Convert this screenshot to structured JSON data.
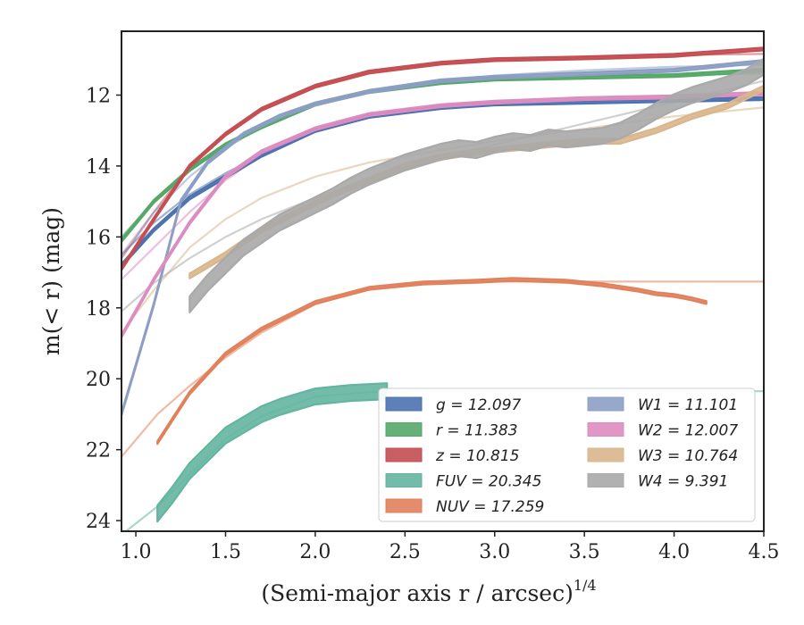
{
  "chart_data": {
    "type": "line",
    "xlabel": "(Semi-major axis r / arcsec)",
    "xlabel_exponent": "1/4",
    "ylabel": "m(< r) (mag)",
    "xlim": [
      0.92,
      4.5
    ],
    "ylim": [
      24.3,
      10.2
    ],
    "y_inverted": true,
    "x_ticks": [
      "1.0",
      "1.5",
      "2.0",
      "2.5",
      "3.0",
      "3.5",
      "4.0",
      "4.5"
    ],
    "y_ticks": [
      "12",
      "14",
      "16",
      "18",
      "20",
      "22",
      "24"
    ],
    "grid": false,
    "legend_position": "lower-right",
    "legend_columns": 2,
    "series": [
      {
        "name": "g = 12.097",
        "color": "#4c72b0",
        "band": 0.08,
        "data": [
          [
            0.92,
            16.8
          ],
          [
            1.1,
            15.8
          ],
          [
            1.3,
            14.9
          ],
          [
            1.5,
            14.3
          ],
          [
            1.7,
            13.7
          ],
          [
            2.0,
            13.0
          ],
          [
            2.3,
            12.6
          ],
          [
            2.7,
            12.35
          ],
          [
            3.0,
            12.25
          ],
          [
            3.5,
            12.2
          ],
          [
            4.0,
            12.15
          ],
          [
            4.5,
            12.1
          ]
        ],
        "model": [
          [
            0.92,
            16.5
          ],
          [
            1.1,
            15.6
          ],
          [
            1.3,
            14.8
          ],
          [
            1.5,
            14.2
          ],
          [
            1.7,
            13.7
          ],
          [
            2.0,
            13.0
          ],
          [
            2.3,
            12.6
          ],
          [
            2.7,
            12.35
          ],
          [
            3.0,
            12.25
          ],
          [
            3.5,
            12.17
          ],
          [
            4.0,
            12.12
          ],
          [
            4.5,
            12.1
          ]
        ]
      },
      {
        "name": "r = 11.383",
        "color": "#55a868",
        "band": 0.08,
        "data": [
          [
            0.92,
            16.1
          ],
          [
            1.1,
            15.0
          ],
          [
            1.3,
            14.1
          ],
          [
            1.5,
            13.4
          ],
          [
            1.7,
            12.9
          ],
          [
            2.0,
            12.25
          ],
          [
            2.3,
            11.9
          ],
          [
            2.7,
            11.65
          ],
          [
            3.0,
            11.55
          ],
          [
            3.5,
            11.5
          ],
          [
            4.0,
            11.45
          ],
          [
            4.5,
            11.3
          ]
        ],
        "model": [
          [
            0.92,
            16.0
          ],
          [
            1.1,
            15.0
          ],
          [
            1.3,
            14.1
          ],
          [
            1.5,
            13.4
          ],
          [
            1.7,
            12.9
          ],
          [
            2.0,
            12.3
          ],
          [
            2.3,
            11.9
          ],
          [
            2.7,
            11.65
          ],
          [
            3.0,
            11.55
          ],
          [
            3.5,
            11.48
          ],
          [
            4.0,
            11.43
          ],
          [
            4.5,
            11.4
          ]
        ]
      },
      {
        "name": "z = 10.815",
        "color": "#c44e52",
        "band": 0.08,
        "data": [
          [
            0.92,
            16.9
          ],
          [
            1.1,
            15.5
          ],
          [
            1.3,
            14.0
          ],
          [
            1.5,
            13.1
          ],
          [
            1.7,
            12.4
          ],
          [
            2.0,
            11.75
          ],
          [
            2.3,
            11.35
          ],
          [
            2.7,
            11.1
          ],
          [
            3.0,
            11.0
          ],
          [
            3.5,
            10.95
          ],
          [
            4.0,
            10.88
          ],
          [
            4.5,
            10.7
          ]
        ],
        "model": [
          [
            0.92,
            16.6
          ],
          [
            1.1,
            15.3
          ],
          [
            1.3,
            14.0
          ],
          [
            1.5,
            13.1
          ],
          [
            1.7,
            12.4
          ],
          [
            2.0,
            11.75
          ],
          [
            2.3,
            11.35
          ],
          [
            2.7,
            11.1
          ],
          [
            3.0,
            11.0
          ],
          [
            3.5,
            10.93
          ],
          [
            4.0,
            10.87
          ],
          [
            4.5,
            10.84
          ]
        ]
      },
      {
        "name": "FUV = 20.345",
        "color": "#64b5a0",
        "band": 0.45,
        "data": [
          [
            1.12,
            23.8
          ],
          [
            1.2,
            23.3
          ],
          [
            1.3,
            22.6
          ],
          [
            1.4,
            22.1
          ],
          [
            1.5,
            21.6
          ],
          [
            1.6,
            21.3
          ],
          [
            1.7,
            21.0
          ],
          [
            1.8,
            20.8
          ],
          [
            1.9,
            20.65
          ],
          [
            2.0,
            20.5
          ],
          [
            2.2,
            20.4
          ],
          [
            2.4,
            20.35
          ]
        ],
        "model": [
          [
            0.92,
            24.4
          ],
          [
            1.12,
            23.6
          ],
          [
            1.3,
            22.7
          ],
          [
            1.5,
            21.7
          ],
          [
            1.7,
            21.05
          ],
          [
            2.0,
            20.5
          ],
          [
            2.3,
            20.38
          ],
          [
            2.6,
            20.35
          ],
          [
            3.0,
            20.35
          ],
          [
            3.5,
            20.35
          ],
          [
            4.0,
            20.35
          ],
          [
            4.5,
            20.35
          ]
        ]
      },
      {
        "name": "NUV = 17.259",
        "color": "#e1815c",
        "band": 0.08,
        "data": [
          [
            1.12,
            21.8
          ],
          [
            1.3,
            20.4
          ],
          [
            1.5,
            19.3
          ],
          [
            1.7,
            18.6
          ],
          [
            2.0,
            17.85
          ],
          [
            2.3,
            17.45
          ],
          [
            2.6,
            17.3
          ],
          [
            2.9,
            17.25
          ],
          [
            3.1,
            17.2
          ],
          [
            3.4,
            17.25
          ],
          [
            3.6,
            17.35
          ],
          [
            3.8,
            17.5
          ],
          [
            3.9,
            17.6
          ],
          [
            4.0,
            17.65
          ],
          [
            4.1,
            17.75
          ],
          [
            4.18,
            17.85
          ]
        ],
        "model": [
          [
            0.92,
            22.2
          ],
          [
            1.12,
            21.0
          ],
          [
            1.3,
            20.2
          ],
          [
            1.5,
            19.4
          ],
          [
            1.7,
            18.7
          ],
          [
            2.0,
            17.9
          ],
          [
            2.3,
            17.45
          ],
          [
            2.6,
            17.3
          ],
          [
            3.0,
            17.26
          ],
          [
            3.5,
            17.26
          ],
          [
            4.0,
            17.26
          ],
          [
            4.5,
            17.26
          ]
        ]
      },
      {
        "name": "W1 = 11.101",
        "color": "#8c9ec4",
        "band": 0.08,
        "data": [
          [
            0.92,
            21.0
          ],
          [
            1.1,
            17.9
          ],
          [
            1.25,
            15.0
          ],
          [
            1.4,
            13.9
          ],
          [
            1.6,
            13.1
          ],
          [
            1.8,
            12.6
          ],
          [
            2.0,
            12.25
          ],
          [
            2.3,
            11.9
          ],
          [
            2.7,
            11.6
          ],
          [
            3.0,
            11.5
          ],
          [
            3.5,
            11.4
          ],
          [
            4.0,
            11.3
          ],
          [
            4.5,
            11.05
          ]
        ],
        "model": [
          [
            0.92,
            16.5
          ],
          [
            1.1,
            15.3
          ],
          [
            1.3,
            14.3
          ],
          [
            1.5,
            13.5
          ],
          [
            1.7,
            12.9
          ],
          [
            2.0,
            12.25
          ],
          [
            2.3,
            11.9
          ],
          [
            2.7,
            11.6
          ],
          [
            3.0,
            11.45
          ],
          [
            3.5,
            11.3
          ],
          [
            4.0,
            11.2
          ],
          [
            4.5,
            11.15
          ]
        ]
      },
      {
        "name": "W2 = 12.007",
        "color": "#dd8cc0",
        "band": 0.08,
        "data": [
          [
            0.92,
            18.8
          ],
          [
            1.1,
            17.2
          ],
          [
            1.3,
            15.6
          ],
          [
            1.5,
            14.3
          ],
          [
            1.7,
            13.6
          ],
          [
            2.0,
            12.95
          ],
          [
            2.3,
            12.55
          ],
          [
            2.7,
            12.3
          ],
          [
            3.0,
            12.2
          ],
          [
            3.5,
            12.1
          ],
          [
            4.0,
            12.05
          ],
          [
            4.5,
            11.95
          ]
        ],
        "model": [
          [
            0.92,
            17.2
          ],
          [
            1.1,
            16.3
          ],
          [
            1.3,
            15.3
          ],
          [
            1.5,
            14.4
          ],
          [
            1.7,
            13.7
          ],
          [
            2.0,
            13.0
          ],
          [
            2.3,
            12.6
          ],
          [
            2.7,
            12.35
          ],
          [
            3.0,
            12.2
          ],
          [
            3.5,
            12.1
          ],
          [
            4.0,
            12.03
          ],
          [
            4.5,
            12.0
          ]
        ]
      },
      {
        "name": "W3 = 10.764",
        "color": "#d9b68c",
        "band": 0.14,
        "data": [
          [
            1.3,
            17.1
          ],
          [
            1.5,
            16.5
          ],
          [
            1.7,
            15.8
          ],
          [
            1.9,
            15.3
          ],
          [
            2.1,
            14.8
          ],
          [
            2.3,
            14.4
          ],
          [
            2.5,
            14.0
          ],
          [
            2.7,
            13.75
          ],
          [
            2.9,
            13.6
          ],
          [
            3.1,
            13.5
          ],
          [
            3.3,
            13.4
          ],
          [
            3.5,
            13.3
          ],
          [
            3.7,
            13.3
          ],
          [
            3.9,
            13.0
          ],
          [
            4.1,
            12.6
          ],
          [
            4.3,
            12.3
          ],
          [
            4.5,
            11.8
          ]
        ],
        "model": [
          [
            0.92,
            18.7
          ],
          [
            1.1,
            17.5
          ],
          [
            1.3,
            16.3
          ],
          [
            1.5,
            15.5
          ],
          [
            1.7,
            14.9
          ],
          [
            2.0,
            14.3
          ],
          [
            2.3,
            13.9
          ],
          [
            2.7,
            13.55
          ],
          [
            3.0,
            13.3
          ],
          [
            3.5,
            12.95
          ],
          [
            4.0,
            12.6
          ],
          [
            4.5,
            12.35
          ]
        ]
      },
      {
        "name": "W4 = 9.391",
        "color": "#a9a9a9",
        "band": 0.45,
        "data": [
          [
            1.3,
            17.9
          ],
          [
            1.4,
            17.3
          ],
          [
            1.5,
            16.8
          ],
          [
            1.6,
            16.3
          ],
          [
            1.7,
            15.95
          ],
          [
            1.8,
            15.6
          ],
          [
            1.9,
            15.35
          ],
          [
            2.0,
            15.1
          ],
          [
            2.1,
            14.85
          ],
          [
            2.2,
            14.55
          ],
          [
            2.3,
            14.3
          ],
          [
            2.4,
            14.1
          ],
          [
            2.5,
            13.9
          ],
          [
            2.6,
            13.75
          ],
          [
            2.7,
            13.6
          ],
          [
            2.8,
            13.5
          ],
          [
            2.9,
            13.55
          ],
          [
            3.0,
            13.4
          ],
          [
            3.1,
            13.3
          ],
          [
            3.2,
            13.35
          ],
          [
            3.3,
            13.2
          ],
          [
            3.4,
            13.25
          ],
          [
            3.5,
            13.2
          ],
          [
            3.6,
            13.15
          ],
          [
            3.7,
            13.0
          ],
          [
            3.8,
            12.75
          ],
          [
            3.9,
            12.45
          ],
          [
            4.0,
            12.2
          ],
          [
            4.1,
            12.0
          ],
          [
            4.2,
            11.85
          ],
          [
            4.3,
            11.7
          ],
          [
            4.4,
            11.5
          ],
          [
            4.5,
            11.2
          ]
        ],
        "model": [
          [
            0.92,
            18.1
          ],
          [
            1.1,
            17.3
          ],
          [
            1.3,
            16.6
          ],
          [
            1.5,
            16.0
          ],
          [
            1.7,
            15.5
          ],
          [
            2.0,
            14.9
          ],
          [
            2.3,
            14.4
          ],
          [
            2.7,
            13.8
          ],
          [
            3.0,
            13.4
          ],
          [
            3.5,
            12.8
          ],
          [
            4.0,
            12.2
          ],
          [
            4.5,
            11.6
          ]
        ]
      }
    ]
  }
}
